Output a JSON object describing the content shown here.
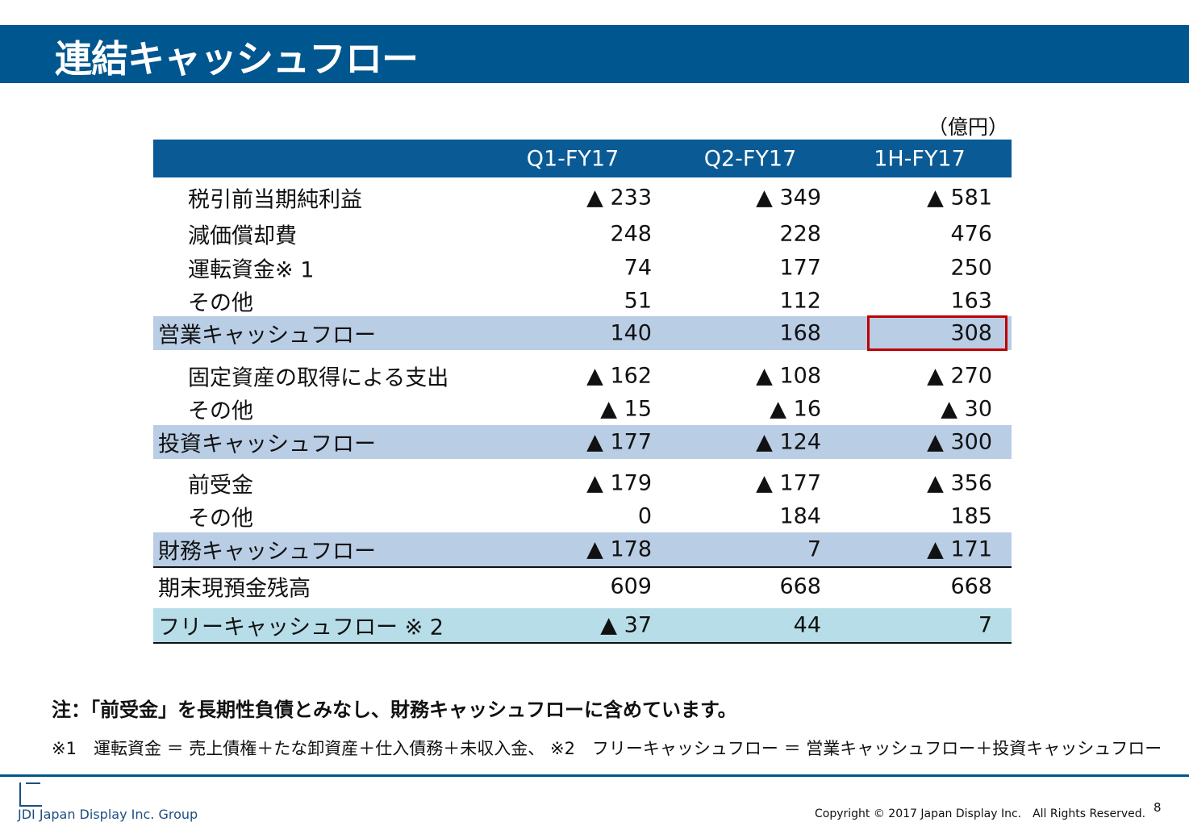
{
  "title": "連結キャッシュフロー",
  "unit": "（億円）",
  "columns": [
    "Q1-FY17",
    "Q2-FY17",
    "1H-FY17"
  ],
  "rows": [
    {
      "label": "税引前当期純利益",
      "type": "item",
      "values": [
        "▲ 233",
        "▲ 349",
        "▲ 581"
      ]
    },
    {
      "label": "減価償却費",
      "type": "item",
      "values": [
        "248",
        "228",
        "476"
      ]
    },
    {
      "label": "運転資金※ 1",
      "type": "item",
      "values": [
        "74",
        "177",
        "250"
      ]
    },
    {
      "label": "その他",
      "type": "item",
      "values": [
        "51",
        "112",
        "163"
      ]
    },
    {
      "label": "営業キャッシュフロー",
      "type": "sub",
      "values": [
        "140",
        "168",
        "308"
      ],
      "highlighted": "1H-FY17"
    },
    {
      "label": "固定資産の取得による支出",
      "type": "item",
      "values": [
        "▲ 162",
        "▲ 108",
        "▲ 270"
      ]
    },
    {
      "label": "その他",
      "type": "item",
      "values": [
        "▲ 15",
        "▲ 16",
        "▲ 30"
      ]
    },
    {
      "label": "投資キャッシュフロー",
      "type": "sub",
      "values": [
        "▲ 177",
        "▲ 124",
        "▲ 300"
      ]
    },
    {
      "label": "前受金",
      "type": "item",
      "values": [
        "▲ 179",
        "▲ 177",
        "▲ 356"
      ]
    },
    {
      "label": "その他",
      "type": "item",
      "values": [
        "0",
        "184",
        "185"
      ]
    },
    {
      "label": "財務キャッシュフロー",
      "type": "sub lined",
      "values": [
        "▲ 178",
        "7",
        "▲ 171"
      ]
    },
    {
      "label": "期末現預金残高",
      "type": "total",
      "values": [
        "609",
        "668",
        "668"
      ]
    },
    {
      "label": "フリーキャッシュフロー ※ 2",
      "type": "free",
      "values": [
        "▲ 37",
        "44",
        "7"
      ]
    }
  ],
  "note": "注：「前受金」を長期性負債とみなし、財務キャッシュフローに含めています。",
  "footnote": "※1　運転資金 ＝ 売上債権＋たな卸資産＋仕入債務＋未収入金、 ※2　フリーキャッシュフロー ＝ 営業キャッシュフロー＋投資キャッシュフロー",
  "footer": {
    "logo": "JDI Japan Display Inc. Group",
    "copyright": "Copyright © 2017 Japan Display Inc.　All Rights Reserved.",
    "page": "8"
  },
  "colors": {
    "brand": "#00568e",
    "subtotal": "#b9cde5",
    "free": "#b7dde8",
    "highlight": "#c00000"
  }
}
